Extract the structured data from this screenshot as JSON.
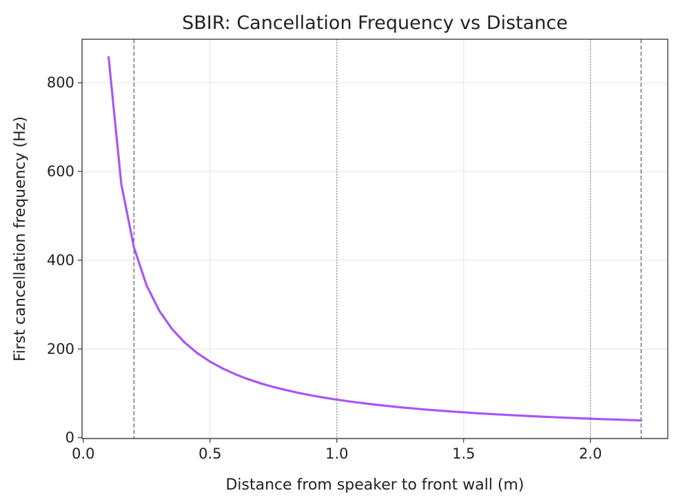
{
  "chart_data": {
    "type": "line",
    "title": "SBIR: Cancellation Frequency vs Distance",
    "xlabel": "Distance from speaker to front wall (m)",
    "ylabel": "First cancellation frequency (Hz)",
    "xlim": [
      -0.005,
      2.305
    ],
    "ylim": [
      -2,
      898
    ],
    "xticks": [
      0.0,
      0.5,
      1.0,
      1.5,
      2.0
    ],
    "xtick_labels": [
      "0.0",
      "0.5",
      "1.0",
      "1.5",
      "2.0"
    ],
    "yticks": [
      0,
      200,
      400,
      600,
      800
    ],
    "ytick_labels": [
      "0",
      "200",
      "400",
      "600",
      "800"
    ],
    "grid": true,
    "series": [
      {
        "color": "#a855f7",
        "x": [
          0.1,
          0.15,
          0.2,
          0.25,
          0.3,
          0.35,
          0.4,
          0.45,
          0.5,
          0.55,
          0.6,
          0.65,
          0.7,
          0.75,
          0.8,
          0.85,
          0.9,
          0.95,
          1.0,
          1.05,
          1.1,
          1.15,
          1.2,
          1.25,
          1.3,
          1.35,
          1.4,
          1.45,
          1.5,
          1.55,
          1.6,
          1.65,
          1.7,
          1.75,
          1.8,
          1.85,
          1.9,
          1.95,
          2.0,
          2.05,
          2.1,
          2.15,
          2.2
        ],
        "y": [
          857.5,
          571.7,
          428.8,
          343.0,
          285.8,
          245.0,
          214.4,
          190.6,
          171.5,
          155.9,
          142.9,
          131.9,
          122.5,
          114.3,
          107.2,
          100.9,
          95.3,
          90.3,
          85.8,
          81.7,
          78.0,
          74.6,
          71.5,
          68.6,
          66.0,
          63.5,
          61.3,
          59.1,
          57.2,
          55.3,
          53.6,
          52.0,
          50.4,
          49.0,
          47.6,
          46.4,
          45.1,
          44.0,
          42.9,
          41.8,
          40.8,
          39.9,
          39.0
        ]
      }
    ],
    "vlines": [
      {
        "x": 0.2,
        "style": "dashed",
        "color": "#777777"
      },
      {
        "x": 1.0,
        "style": "dotted",
        "color": "#888888"
      },
      {
        "x": 2.0,
        "style": "dotted",
        "color": "#888888"
      },
      {
        "x": 2.2,
        "style": "dashed",
        "color": "#777777"
      }
    ]
  }
}
